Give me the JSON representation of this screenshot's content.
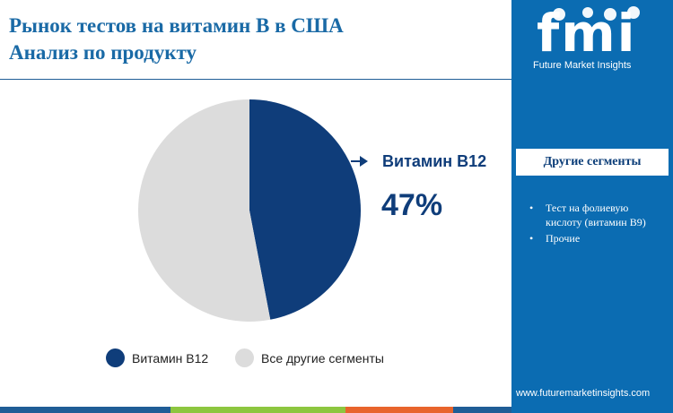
{
  "title": {
    "line1": "Рынок тестов на витамин B в США",
    "line2": "Анализ по продукту"
  },
  "chart_data": {
    "type": "pie",
    "categories": [
      "Витамин B12",
      "Все другие сегменты"
    ],
    "values": [
      47,
      53
    ],
    "colors": [
      "#0f3d7a",
      "#dcdcdc"
    ],
    "callout": {
      "label": "Витамин B12",
      "value": "47%"
    },
    "legend_position": "bottom"
  },
  "legend": {
    "items": [
      {
        "label": "Витамин B12",
        "color": "#0f3d7a"
      },
      {
        "label": "Все другие сегменты",
        "color": "#dcdcdc"
      }
    ]
  },
  "sidebar": {
    "logo_text": "fmi",
    "tagline": "Future Market Insights",
    "segments_title": "Другие сегменты",
    "segments": [
      "Тест на фолиевую кислоту (витамин B9)",
      "Прочие"
    ],
    "website": "www.futuremarketinsights.com",
    "background_color": "#0b6cb2"
  },
  "bottom_bar_colors": [
    "#1f5d96",
    "#8dc63f",
    "#e8642c",
    "#1f5d96"
  ]
}
